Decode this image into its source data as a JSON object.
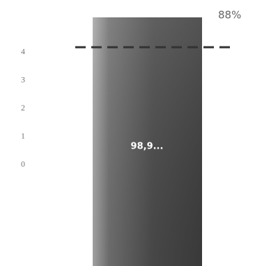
{
  "axis_labels": [
    "4",
    "3",
    "2",
    "1",
    "0"
  ],
  "bar_label": "98,9...",
  "percent_label": "88%"
}
